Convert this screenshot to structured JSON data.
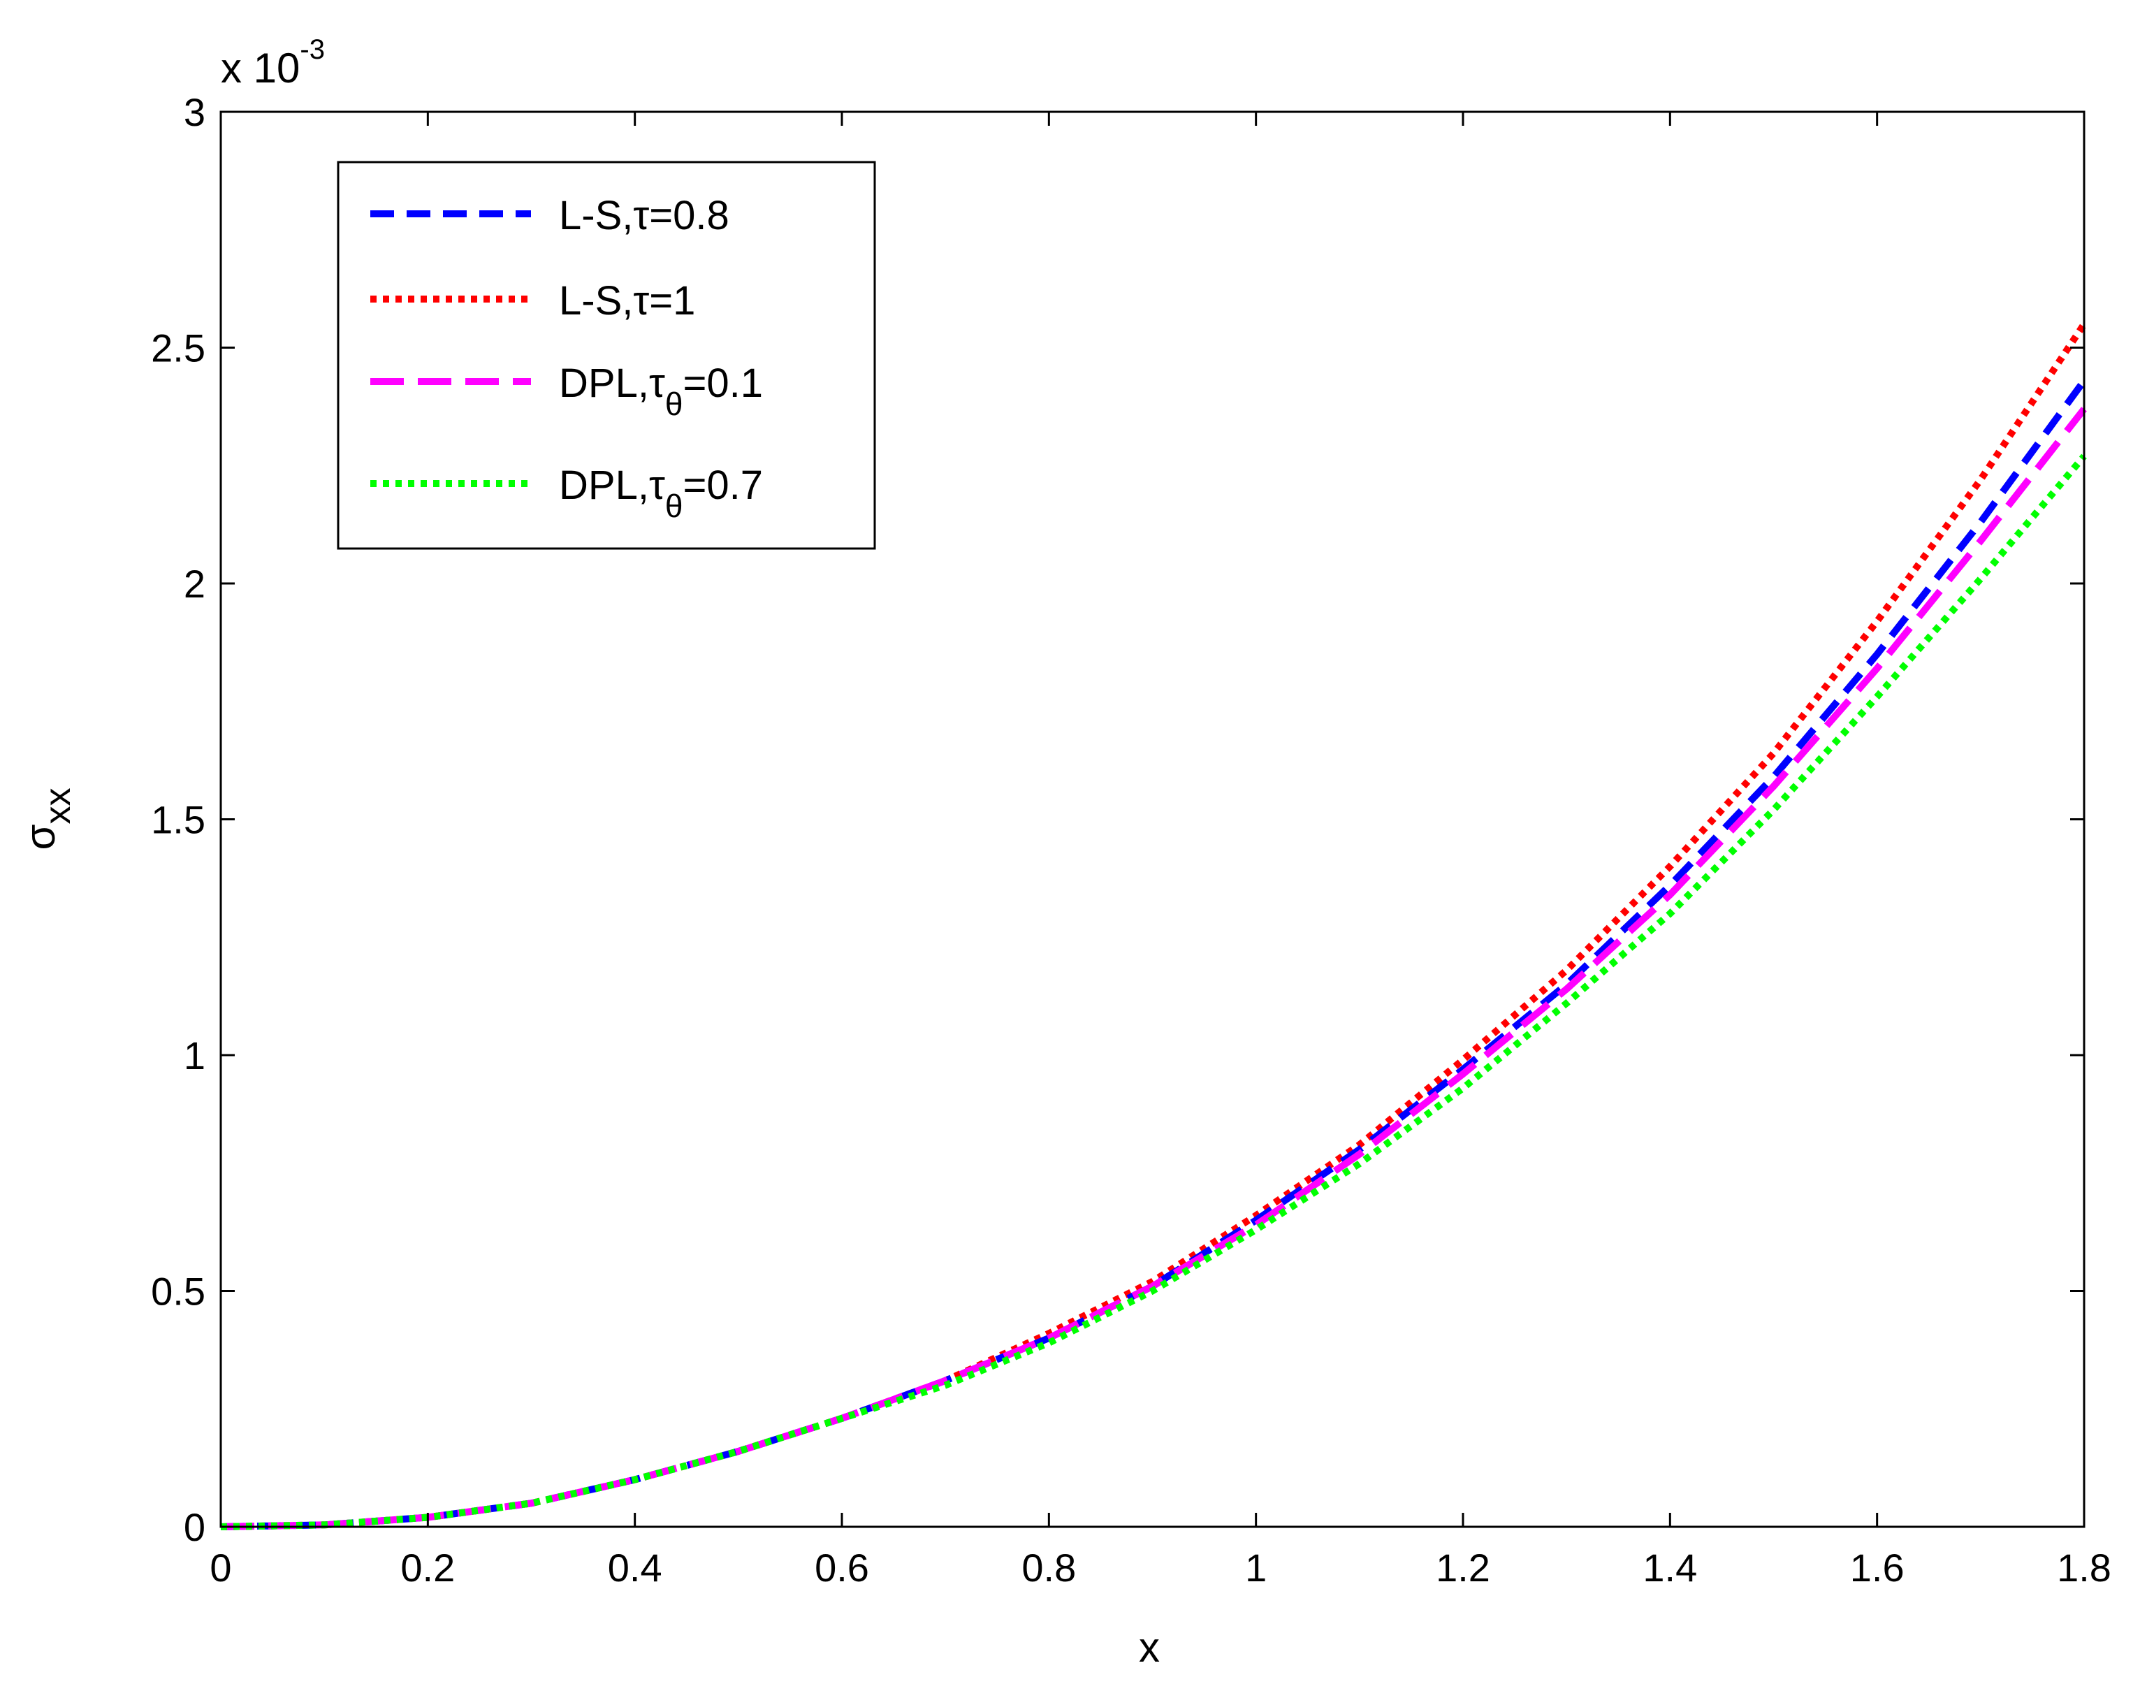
{
  "chart_data": {
    "type": "line",
    "xlabel": "x",
    "ylabel": "σxx",
    "ylabel_parts": {
      "main": "σ",
      "sub": "xx"
    },
    "y_multiplier": {
      "prefix": "x 10",
      "exponent": "-3"
    },
    "xlim": [
      0,
      1.8
    ],
    "ylim": [
      0,
      3
    ],
    "x_ticks": [
      0,
      0.2,
      0.4,
      0.6,
      0.8,
      1,
      1.2,
      1.4,
      1.6,
      1.8
    ],
    "x_tick_labels": [
      "0",
      "0.2",
      "0.4",
      "0.6",
      "0.8",
      "1",
      "1.2",
      "1.4",
      "1.6",
      "1.8"
    ],
    "y_ticks": [
      0,
      0.5,
      1,
      1.5,
      2,
      2.5,
      3
    ],
    "y_tick_labels": [
      "0",
      "0.5",
      "1",
      "1.5",
      "2",
      "2.5",
      "3"
    ],
    "grid": false,
    "legend_position": "top-left",
    "x": [
      0,
      0.1,
      0.2,
      0.3,
      0.4,
      0.5,
      0.6,
      0.7,
      0.8,
      0.9,
      1.0,
      1.1,
      1.2,
      1.3,
      1.4,
      1.5,
      1.6,
      1.7,
      1.8
    ],
    "series": [
      {
        "name": "L-S,τ=0.8",
        "label_parts": [
          "L-S,",
          "τ",
          "",
          "=0.8"
        ],
        "color": "#0000ff",
        "style": "dashed",
        "values": [
          0,
          0.004,
          0.02,
          0.05,
          0.1,
          0.16,
          0.23,
          0.31,
          0.4,
          0.51,
          0.65,
          0.8,
          0.97,
          1.15,
          1.36,
          1.59,
          1.85,
          2.13,
          2.43
        ]
      },
      {
        "name": "L-S,τ=1",
        "label_parts": [
          "L-S,",
          "τ",
          "",
          "=1"
        ],
        "color": "#ff0000",
        "style": "dotted",
        "values": [
          0,
          0.004,
          0.02,
          0.05,
          0.1,
          0.16,
          0.23,
          0.31,
          0.41,
          0.52,
          0.66,
          0.81,
          0.99,
          1.18,
          1.4,
          1.64,
          1.92,
          2.22,
          2.55
        ]
      },
      {
        "name": "DPL,τθ=0.1",
        "label_parts": [
          "DPL,",
          "τ",
          "θ",
          "=0.1"
        ],
        "color": "#ff00ff",
        "style": "longdash",
        "values": [
          0,
          0.004,
          0.02,
          0.05,
          0.1,
          0.16,
          0.23,
          0.31,
          0.4,
          0.51,
          0.64,
          0.79,
          0.96,
          1.14,
          1.34,
          1.57,
          1.82,
          2.09,
          2.37
        ]
      },
      {
        "name": "DPL,τθ=0.7",
        "label_parts": [
          "DPL,",
          "τ",
          "θ",
          "=0.7"
        ],
        "color": "#00ff00",
        "style": "dotted",
        "values": [
          0,
          0.004,
          0.02,
          0.05,
          0.1,
          0.16,
          0.23,
          0.3,
          0.39,
          0.5,
          0.63,
          0.77,
          0.93,
          1.11,
          1.3,
          1.52,
          1.76,
          2.01,
          2.27
        ]
      }
    ]
  }
}
